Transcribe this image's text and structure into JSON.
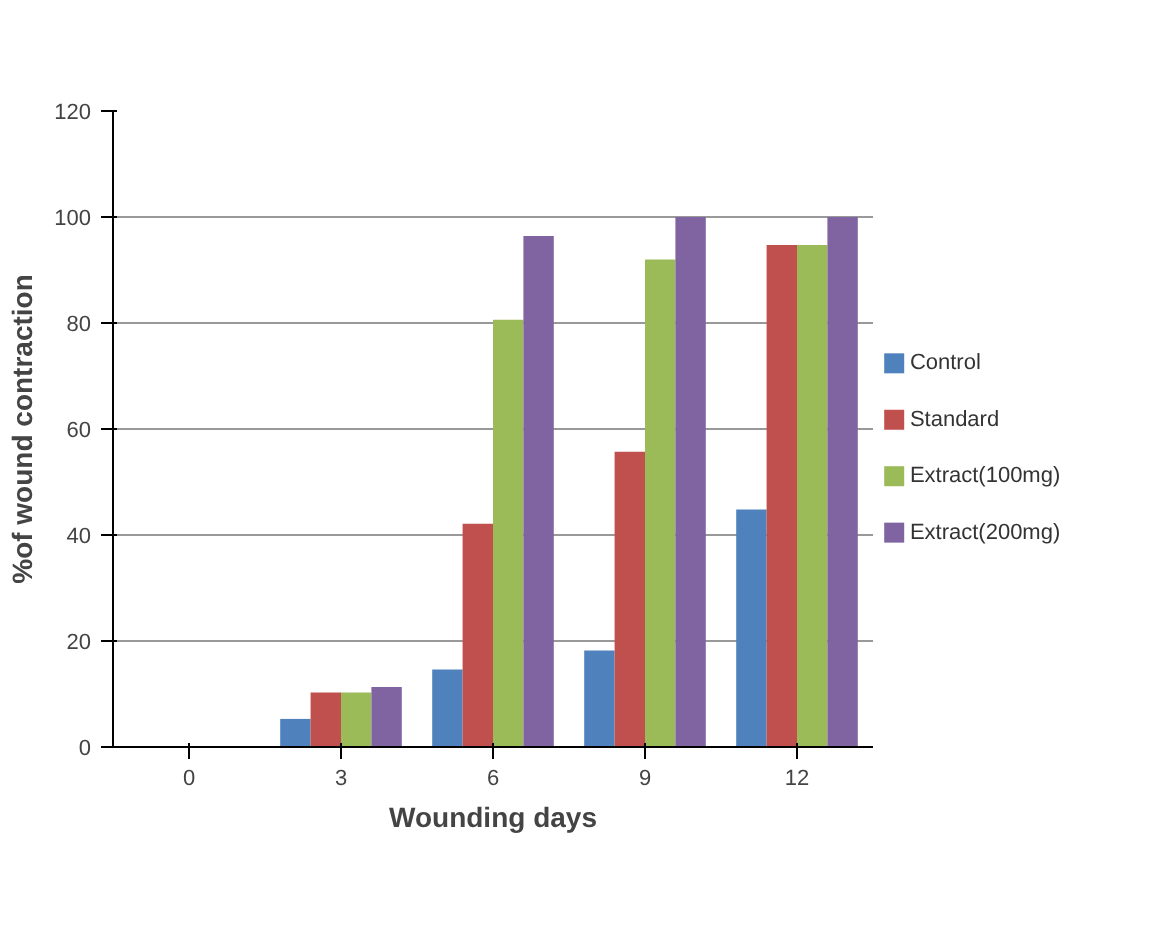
{
  "chart_data": {
    "type": "bar",
    "xlabel": "Wounding days",
    "ylabel": "%of wound contraction",
    "categories": [
      "0",
      "3",
      "6",
      "9",
      "12"
    ],
    "series": [
      {
        "name": "Control",
        "color": "#4f81bd",
        "values": [
          0,
          5.3,
          14.6,
          18.2,
          44.8
        ]
      },
      {
        "name": "Standard",
        "color": "#c0504d",
        "values": [
          0,
          10.3,
          42.1,
          55.7,
          94.7
        ]
      },
      {
        "name": "Extract(100mg)",
        "color": "#9bbb59",
        "values": [
          0,
          10.3,
          80.6,
          92,
          94.7
        ]
      },
      {
        "name": "Extract(200mg)",
        "color": "#8064a2",
        "values": [
          0,
          11.3,
          96.4,
          100,
          100
        ]
      }
    ],
    "ylim": [
      0,
      120
    ],
    "yticks": [
      0,
      20,
      40,
      60,
      80,
      100,
      120
    ],
    "grid": "y",
    "legend": "right"
  }
}
